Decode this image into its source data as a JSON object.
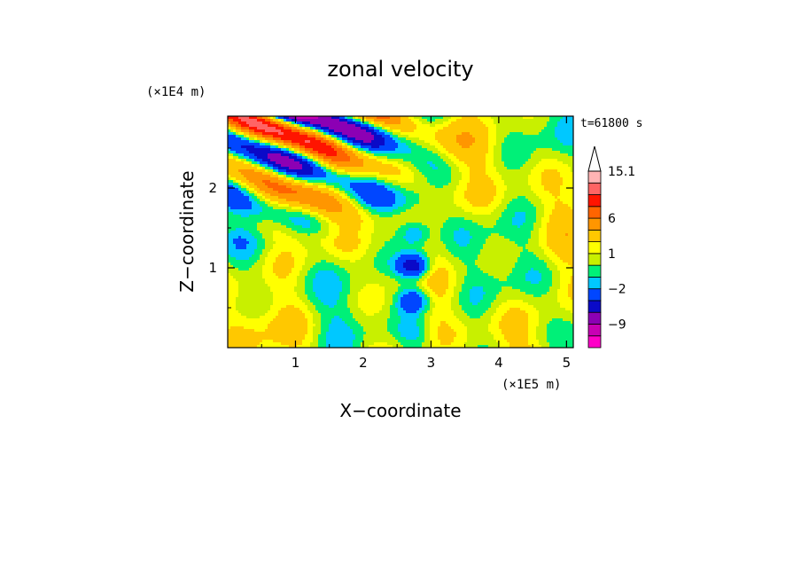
{
  "chart_data": {
    "type": "heatmap",
    "title": "zonal velocity",
    "xlabel": "X−coordinate",
    "ylabel": "Z−coordinate",
    "x_unit": "(×1E5 m)",
    "y_unit": "(×1E4 m)",
    "time_label": "t=61800 s",
    "xlim": [
      0.0,
      5.1
    ],
    "ylim": [
      0.0,
      2.9
    ],
    "x_ticks": [
      1,
      2,
      3,
      4,
      5
    ],
    "y_ticks": [
      1,
      2
    ],
    "x_tick_labels": [
      "1",
      "2",
      "3",
      "4",
      "5"
    ],
    "y_tick_labels": [
      "1",
      "2"
    ],
    "colorbar": {
      "levels": [
        -15,
        -12,
        -9,
        -6,
        -4,
        -2,
        -1,
        0,
        1,
        2,
        4,
        6,
        8,
        10,
        12,
        15.1
      ],
      "colors": [
        "#ff00c8",
        "#c800b4",
        "#8c00b4",
        "#0a0ac8",
        "#0046ff",
        "#00c8ff",
        "#00f078",
        "#c8f000",
        "#ffff00",
        "#ffc800",
        "#ff9600",
        "#ff6400",
        "#ff1400",
        "#ff6464",
        "#ffb4b4"
      ],
      "tick_labels": [
        "15.1",
        "6",
        "1",
        "−2",
        "−9"
      ],
      "tick_values": [
        15.1,
        6,
        1,
        -2,
        -9
      ],
      "extend": "max"
    }
  }
}
